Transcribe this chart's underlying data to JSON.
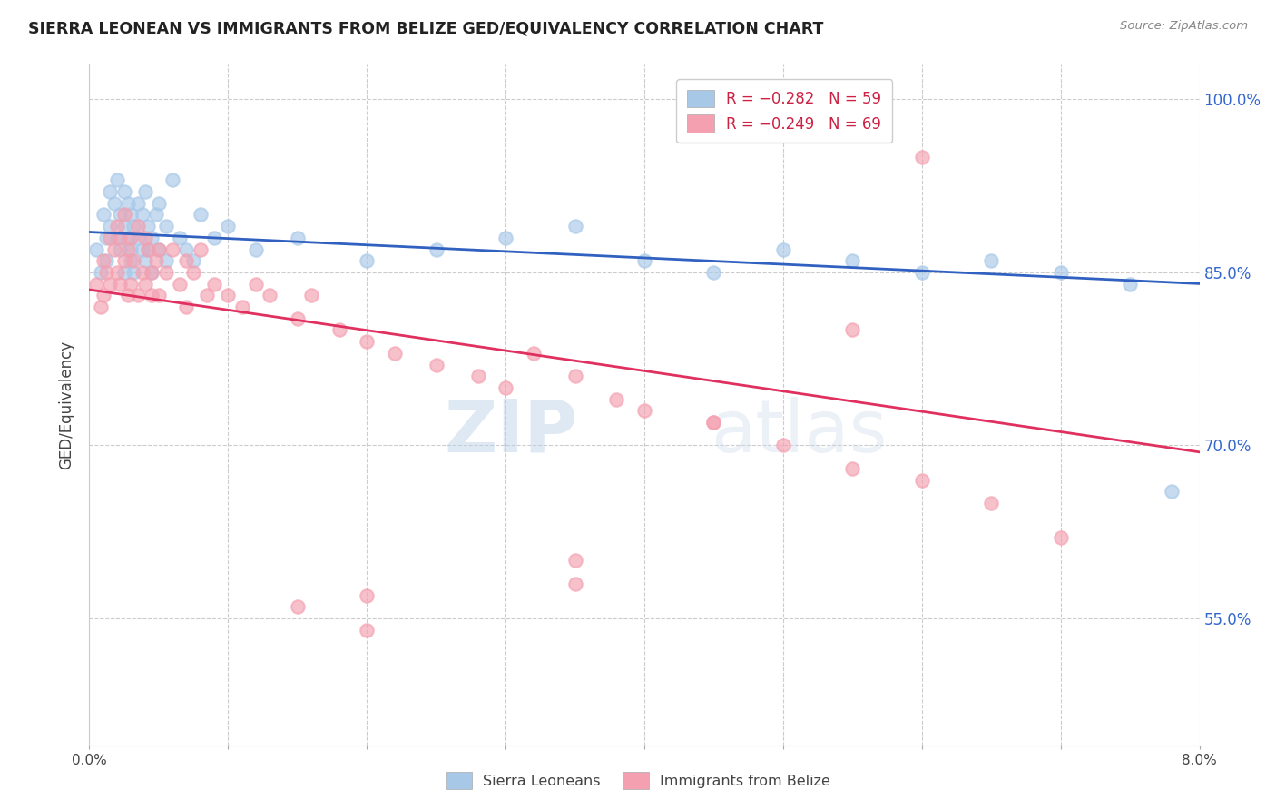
{
  "title": "SIERRA LEONEAN VS IMMIGRANTS FROM BELIZE GED/EQUIVALENCY CORRELATION CHART",
  "source": "Source: ZipAtlas.com",
  "ylabel": "GED/Equivalency",
  "ytick_vals": [
    100.0,
    85.0,
    70.0,
    55.0
  ],
  "legend_labels_bottom": [
    "Sierra Leoneans",
    "Immigrants from Belize"
  ],
  "blue_color": "#a8c8e8",
  "pink_color": "#f4a0b0",
  "blue_line_color": "#3060c0",
  "pink_line_color": "#e03060",
  "watermark_zip": "ZIP",
  "watermark_atlas": "atlas",
  "xmin": 0.0,
  "xmax": 8.0,
  "ymin": 44.0,
  "ymax": 103.0,
  "blue_scatter_x": [
    0.05,
    0.08,
    0.1,
    0.12,
    0.12,
    0.15,
    0.15,
    0.18,
    0.2,
    0.2,
    0.22,
    0.22,
    0.25,
    0.25,
    0.25,
    0.28,
    0.28,
    0.3,
    0.3,
    0.3,
    0.32,
    0.32,
    0.35,
    0.35,
    0.38,
    0.38,
    0.4,
    0.4,
    0.42,
    0.42,
    0.45,
    0.45,
    0.48,
    0.5,
    0.5,
    0.55,
    0.55,
    0.6,
    0.65,
    0.7,
    0.75,
    0.8,
    0.9,
    1.0,
    1.2,
    1.5,
    2.0,
    2.5,
    3.0,
    3.5,
    4.0,
    4.5,
    5.0,
    5.5,
    6.0,
    6.5,
    7.0,
    7.5,
    7.8
  ],
  "blue_scatter_y": [
    87,
    85,
    90,
    88,
    86,
    92,
    89,
    91,
    93,
    88,
    90,
    87,
    89,
    92,
    85,
    88,
    91,
    86,
    90,
    87,
    89,
    85,
    91,
    88,
    87,
    90,
    92,
    86,
    89,
    87,
    88,
    85,
    90,
    91,
    87,
    89,
    86,
    93,
    88,
    87,
    86,
    90,
    88,
    89,
    87,
    88,
    86,
    87,
    88,
    89,
    86,
    85,
    87,
    86,
    85,
    86,
    85,
    84,
    66
  ],
  "pink_scatter_x": [
    0.05,
    0.08,
    0.1,
    0.1,
    0.12,
    0.15,
    0.15,
    0.18,
    0.2,
    0.2,
    0.22,
    0.22,
    0.25,
    0.25,
    0.28,
    0.28,
    0.3,
    0.3,
    0.32,
    0.35,
    0.35,
    0.38,
    0.4,
    0.4,
    0.42,
    0.45,
    0.45,
    0.48,
    0.5,
    0.5,
    0.55,
    0.6,
    0.65,
    0.7,
    0.7,
    0.75,
    0.8,
    0.85,
    0.9,
    1.0,
    1.1,
    1.2,
    1.3,
    1.5,
    1.6,
    1.8,
    2.0,
    2.2,
    2.5,
    2.8,
    3.0,
    3.2,
    3.5,
    3.8,
    4.0,
    4.5,
    5.0,
    5.5,
    6.0,
    6.5,
    7.0,
    1.5,
    2.0,
    2.0,
    3.5,
    3.5,
    4.5,
    5.5,
    6.0
  ],
  "pink_scatter_y": [
    84,
    82,
    86,
    83,
    85,
    88,
    84,
    87,
    89,
    85,
    88,
    84,
    90,
    86,
    87,
    83,
    88,
    84,
    86,
    89,
    83,
    85,
    88,
    84,
    87,
    85,
    83,
    86,
    87,
    83,
    85,
    87,
    84,
    86,
    82,
    85,
    87,
    83,
    84,
    83,
    82,
    84,
    83,
    81,
    83,
    80,
    79,
    78,
    77,
    76,
    75,
    78,
    76,
    74,
    73,
    72,
    70,
    68,
    67,
    65,
    62,
    56,
    57,
    54,
    58,
    60,
    72,
    80,
    95
  ]
}
